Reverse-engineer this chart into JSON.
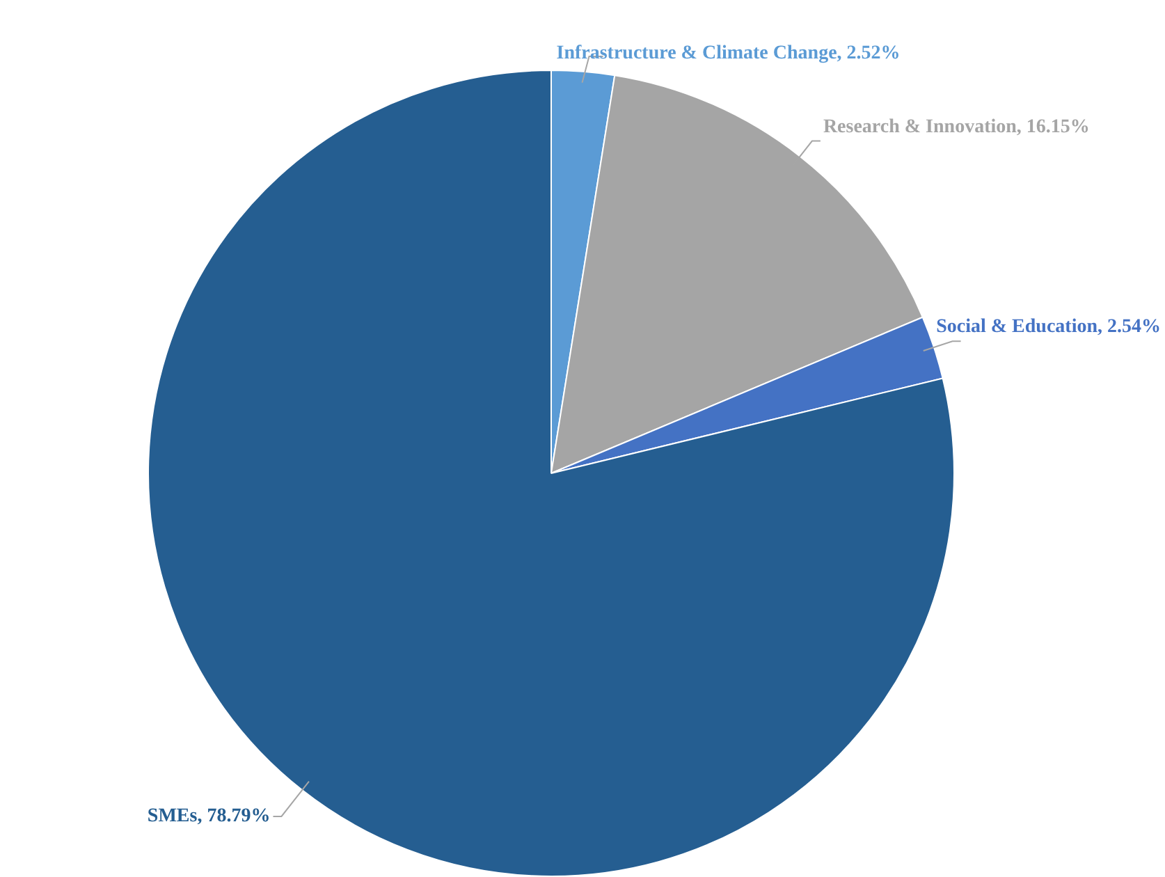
{
  "chart_data": {
    "type": "pie",
    "categories": [
      "Infrastructure & Climate Change",
      "Research & Innovation",
      "Social & Education",
      "SMEs"
    ],
    "values": [
      2.52,
      16.15,
      2.54,
      78.79
    ],
    "value_labels": [
      "2.52%",
      "16.15%",
      "2.54%",
      "78.79%"
    ],
    "colors": [
      "#5b9bd5",
      "#a5a5a5",
      "#4472c4",
      "#255e91"
    ],
    "legend": false
  }
}
